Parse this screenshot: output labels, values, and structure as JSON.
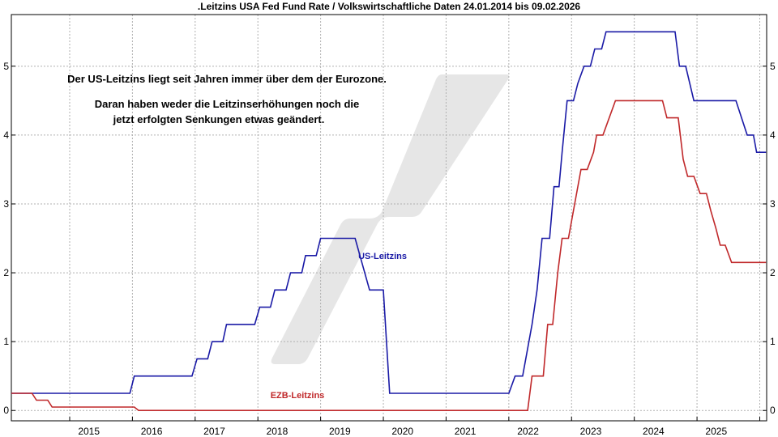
{
  "chart_data": {
    "type": "line",
    "title": ".Leitzins USA Fed Fund Rate / Volkswirtschaftliche Daten 24.01.2014 bis 09.02.2026",
    "xlabel": "",
    "ylabel": "",
    "xlim": [
      2014.07,
      2026.11
    ],
    "ylim": [
      -0.15,
      5.75
    ],
    "x_ticks": [
      "2015",
      "2016",
      "2017",
      "2018",
      "2019",
      "2020",
      "2021",
      "2022",
      "2023",
      "2024",
      "2025"
    ],
    "y_ticks": [
      "0",
      "1",
      "2",
      "3",
      "4",
      "5"
    ],
    "grid": true,
    "annotations": [
      "Der US-Leitzins liegt seit Jahren immer über dem der Eurozone.",
      "Daran haben weder die Leitzinserhöhungen noch die",
      "jetzt erfolgten Senkungen etwas geändert."
    ],
    "series": [
      {
        "name": "US-Leitzins",
        "color": "#1a1aa6",
        "points": [
          [
            2014.07,
            0.25
          ],
          [
            2015.96,
            0.25
          ],
          [
            2016.03,
            0.5
          ],
          [
            2016.95,
            0.5
          ],
          [
            2017.03,
            0.75
          ],
          [
            2017.2,
            0.75
          ],
          [
            2017.27,
            1.0
          ],
          [
            2017.44,
            1.0
          ],
          [
            2017.5,
            1.25
          ],
          [
            2017.95,
            1.25
          ],
          [
            2018.03,
            1.5
          ],
          [
            2018.2,
            1.5
          ],
          [
            2018.27,
            1.75
          ],
          [
            2018.45,
            1.75
          ],
          [
            2018.52,
            2.0
          ],
          [
            2018.7,
            2.0
          ],
          [
            2018.76,
            2.25
          ],
          [
            2018.93,
            2.25
          ],
          [
            2019.0,
            2.5
          ],
          [
            2019.55,
            2.5
          ],
          [
            2019.78,
            1.75
          ],
          [
            2020.0,
            1.75
          ],
          [
            2020.1,
            0.25
          ],
          [
            2022.0,
            0.25
          ],
          [
            2022.1,
            0.5
          ],
          [
            2022.22,
            0.5
          ],
          [
            2022.37,
            1.25
          ],
          [
            2022.45,
            1.75
          ],
          [
            2022.53,
            2.5
          ],
          [
            2022.65,
            2.5
          ],
          [
            2022.72,
            3.25
          ],
          [
            2022.8,
            3.25
          ],
          [
            2022.85,
            3.75
          ],
          [
            2022.93,
            4.5
          ],
          [
            2023.03,
            4.5
          ],
          [
            2023.1,
            4.75
          ],
          [
            2023.2,
            5.0
          ],
          [
            2023.3,
            5.0
          ],
          [
            2023.37,
            5.25
          ],
          [
            2023.48,
            5.25
          ],
          [
            2023.55,
            5.5
          ],
          [
            2024.65,
            5.5
          ],
          [
            2024.72,
            5.0
          ],
          [
            2024.82,
            5.0
          ],
          [
            2024.95,
            4.5
          ],
          [
            2025.62,
            4.5
          ],
          [
            2025.8,
            4.0
          ],
          [
            2025.9,
            4.0
          ],
          [
            2025.95,
            3.75
          ],
          [
            2026.1,
            3.75
          ]
        ]
      },
      {
        "name": "EZB-Leitzins",
        "color": "#c0282a",
        "points": [
          [
            2014.07,
            0.25
          ],
          [
            2014.4,
            0.25
          ],
          [
            2014.47,
            0.15
          ],
          [
            2014.65,
            0.15
          ],
          [
            2014.72,
            0.05
          ],
          [
            2016.03,
            0.05
          ],
          [
            2016.1,
            0.0
          ],
          [
            2022.3,
            0.0
          ],
          [
            2022.37,
            0.5
          ],
          [
            2022.55,
            0.5
          ],
          [
            2022.62,
            1.25
          ],
          [
            2022.7,
            1.25
          ],
          [
            2022.78,
            2.0
          ],
          [
            2022.85,
            2.5
          ],
          [
            2022.95,
            2.5
          ],
          [
            2023.05,
            3.0
          ],
          [
            2023.15,
            3.5
          ],
          [
            2023.25,
            3.5
          ],
          [
            2023.35,
            3.75
          ],
          [
            2023.4,
            4.0
          ],
          [
            2023.5,
            4.0
          ],
          [
            2023.7,
            4.5
          ],
          [
            2024.45,
            4.5
          ],
          [
            2024.52,
            4.25
          ],
          [
            2024.7,
            4.25
          ],
          [
            2024.78,
            3.65
          ],
          [
            2024.85,
            3.4
          ],
          [
            2024.95,
            3.4
          ],
          [
            2025.05,
            3.15
          ],
          [
            2025.15,
            3.15
          ],
          [
            2025.22,
            2.9
          ],
          [
            2025.3,
            2.65
          ],
          [
            2025.37,
            2.4
          ],
          [
            2025.45,
            2.4
          ],
          [
            2025.55,
            2.15
          ],
          [
            2026.1,
            2.15
          ]
        ]
      }
    ]
  }
}
